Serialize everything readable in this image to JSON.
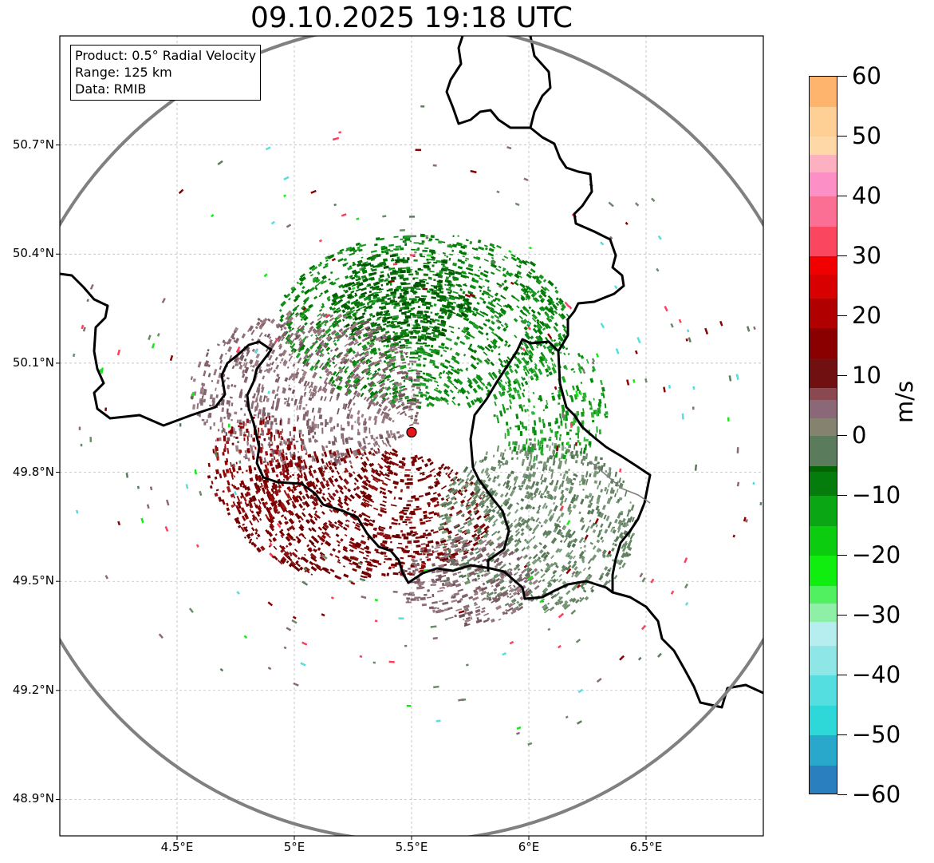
{
  "title": "09.10.2025 19:18 UTC",
  "info": {
    "product": "Product: 0.5° Radial Velocity",
    "range": "Range: 125 km",
    "data": "Data: RMIB"
  },
  "map": {
    "lon_range": [
      4.0,
      7.0
    ],
    "lat_range": [
      48.8,
      51.0
    ],
    "lon_ticks": [
      {
        "value": 4.5,
        "label": "4.5°E"
      },
      {
        "value": 5.0,
        "label": "5°E"
      },
      {
        "value": 5.5,
        "label": "5.5°E"
      },
      {
        "value": 6.0,
        "label": "6°E"
      },
      {
        "value": 6.5,
        "label": "6.5°E"
      }
    ],
    "lat_ticks": [
      {
        "value": 50.7,
        "label": "50.7°N"
      },
      {
        "value": 50.4,
        "label": "50.4°N"
      },
      {
        "value": 50.1,
        "label": "50.1°N"
      },
      {
        "value": 49.8,
        "label": "49.8°N"
      },
      {
        "value": 49.5,
        "label": "49.5°N"
      },
      {
        "value": 49.2,
        "label": "49.2°N"
      },
      {
        "value": 48.9,
        "label": "48.9°N"
      }
    ],
    "radar_site": {
      "lon": 5.5,
      "lat": 49.91
    },
    "range_km": 125,
    "range_ring_color": "#808080",
    "site_marker_color": "#e8151b",
    "border_color": "#000000",
    "grid": true
  },
  "echo_regions": [
    {
      "name": "inbound-north",
      "lon": 5.55,
      "lat": 50.22,
      "rx_deg": 0.62,
      "ry_deg": 0.24,
      "color": "#0d8a14",
      "density": 0.75
    },
    {
      "name": "inbound-north-core",
      "lon": 5.45,
      "lat": 50.28,
      "rx_deg": 0.3,
      "ry_deg": 0.13,
      "color": "#006400",
      "density": 0.85
    },
    {
      "name": "zero-west",
      "lon": 5.05,
      "lat": 50.02,
      "rx_deg": 0.5,
      "ry_deg": 0.22,
      "color": "#8a6b73",
      "density": 0.7
    },
    {
      "name": "outbound-south",
      "lon": 5.3,
      "lat": 49.68,
      "rx_deg": 0.55,
      "ry_deg": 0.18,
      "color": "#7a0000",
      "density": 0.8
    },
    {
      "name": "outbound-west",
      "lon": 4.85,
      "lat": 49.8,
      "rx_deg": 0.22,
      "ry_deg": 0.15,
      "color": "#8b0000",
      "density": 0.65
    },
    {
      "name": "zero-southeast",
      "lon": 6.05,
      "lat": 49.66,
      "rx_deg": 0.42,
      "ry_deg": 0.24,
      "color": "#6a8a6a",
      "density": 0.75
    },
    {
      "name": "zero-south",
      "lon": 5.75,
      "lat": 49.5,
      "rx_deg": 0.3,
      "ry_deg": 0.12,
      "color": "#8a6b73",
      "density": 0.7
    },
    {
      "name": "inbound-east",
      "lon": 6.1,
      "lat": 50.0,
      "rx_deg": 0.25,
      "ry_deg": 0.17,
      "color": "#1aa020",
      "density": 0.5
    }
  ],
  "colorbar": {
    "unit": "m/s",
    "min": -60,
    "max": 60,
    "ticks": [
      "60",
      "50",
      "40",
      "30",
      "20",
      "10",
      "0",
      "−10",
      "−20",
      "−30",
      "−40",
      "−50",
      "−60"
    ],
    "stops": [
      {
        "v": -60,
        "c": "#2a7fbf"
      },
      {
        "v": -55,
        "c": "#29a8cc"
      },
      {
        "v": -50,
        "c": "#2ed8d8"
      },
      {
        "v": -45,
        "c": "#55dedf"
      },
      {
        "v": -40,
        "c": "#8ee6e6"
      },
      {
        "v": -35,
        "c": "#b6eef0"
      },
      {
        "v": -31,
        "c": "#8ef0a6"
      },
      {
        "v": -28,
        "c": "#50f060"
      },
      {
        "v": -25,
        "c": "#10ee10"
      },
      {
        "v": -20,
        "c": "#0ccc10"
      },
      {
        "v": -15,
        "c": "#0aa614"
      },
      {
        "v": -10,
        "c": "#047d0c"
      },
      {
        "v": -6,
        "c": "#006400"
      },
      {
        "v": -5,
        "c": "#5b7c5c"
      },
      {
        "v": 0,
        "c": "#868270"
      },
      {
        "v": 3,
        "c": "#8b6877"
      },
      {
        "v": 6,
        "c": "#8a4850"
      },
      {
        "v": 8,
        "c": "#701010"
      },
      {
        "v": 13,
        "c": "#8a0000"
      },
      {
        "v": 18,
        "c": "#b00000"
      },
      {
        "v": 23,
        "c": "#d80000"
      },
      {
        "v": 27,
        "c": "#f10000"
      },
      {
        "v": 30,
        "c": "#fb4660"
      },
      {
        "v": 35,
        "c": "#fc6f95"
      },
      {
        "v": 40,
        "c": "#fc90c6"
      },
      {
        "v": 44,
        "c": "#fcb0c0"
      },
      {
        "v": 47,
        "c": "#ffd8a8"
      },
      {
        "v": 50,
        "c": "#fed096"
      },
      {
        "v": 55,
        "c": "#ffb46e"
      },
      {
        "v": 60,
        "c": "#ff9a58"
      }
    ]
  }
}
